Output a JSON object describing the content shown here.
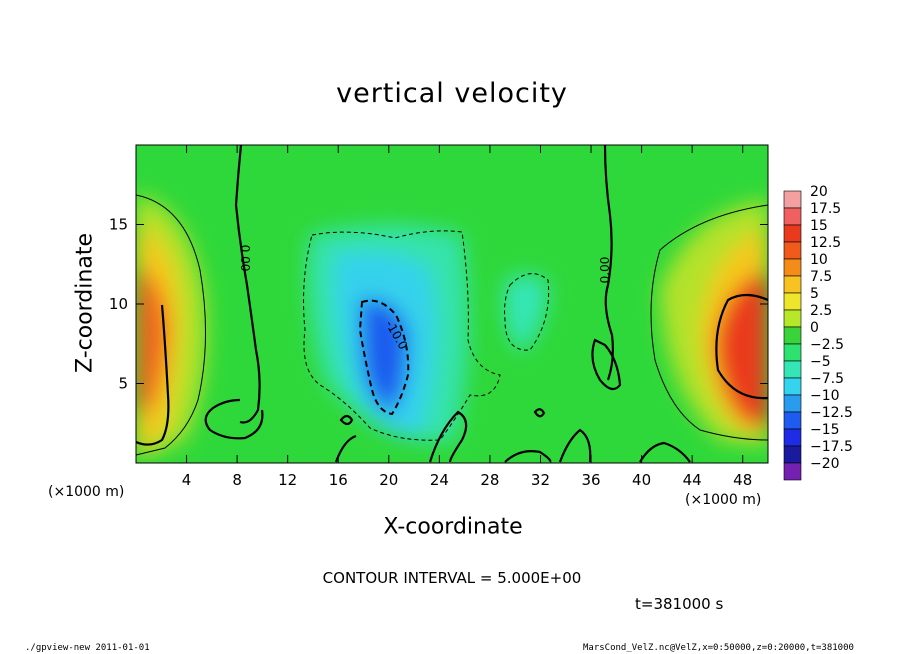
{
  "chart_data": {
    "type": "heatmap",
    "title": "vertical velocity",
    "xlabel": "X-coordinate",
    "ylabel": "Z-coordinate",
    "x_unit": "(×1000 m)",
    "y_unit": "(×1000 m)",
    "xlim": [
      0,
      50
    ],
    "ylim": [
      0,
      20
    ],
    "x_ticks": [
      "4",
      "8",
      "12",
      "16",
      "20",
      "24",
      "28",
      "32",
      "36",
      "40",
      "44",
      "48"
    ],
    "y_ticks": [
      "5",
      "10",
      "15"
    ],
    "colorbar": {
      "labels": [
        "20",
        "17.5",
        "15",
        "12.5",
        "10",
        "7.5",
        "5",
        "2.5",
        "0",
        "−2.5",
        "−5",
        "−7.5",
        "−10",
        "−12.5",
        "−15",
        "−17.5",
        "−20"
      ],
      "colors": [
        "#f4a0a0",
        "#f06060",
        "#ea3a1e",
        "#f05a1a",
        "#f58c19",
        "#f8c221",
        "#eee62a",
        "#b8e629",
        "#3ad43a",
        "#2ee26f",
        "#34e6b6",
        "#34d4ee",
        "#2a9cf0",
        "#1e5cef",
        "#1e2ce6",
        "#1a1a9e",
        "#7420b0"
      ]
    },
    "contour_labels": [
      "0.00",
      "0.00",
      "-10.0"
    ],
    "contour_interval": "CONTOUR INTERVAL = 5.000E+00",
    "time_label": "t=381000 s",
    "features": [
      {
        "name": "updraft-left",
        "x": 0.8,
        "z": 9.0,
        "value": 15
      },
      {
        "name": "updraft-right",
        "x": 48.5,
        "z": 7.0,
        "value": 15
      },
      {
        "name": "downdraft-core",
        "x": 19.5,
        "z": 8.0,
        "value": -12.5
      },
      {
        "name": "downdraft-region",
        "x": 21.0,
        "z": 10.0,
        "value": -5
      },
      {
        "name": "downdraft-small",
        "x": 31.5,
        "z": 10.0,
        "value": -2.5
      }
    ]
  },
  "footer": {
    "left": "./gpview-new   2011-01-01",
    "right": "MarsCond_VelZ.nc@VelZ,x=0:50000,z=0:20000,t=381000"
  }
}
